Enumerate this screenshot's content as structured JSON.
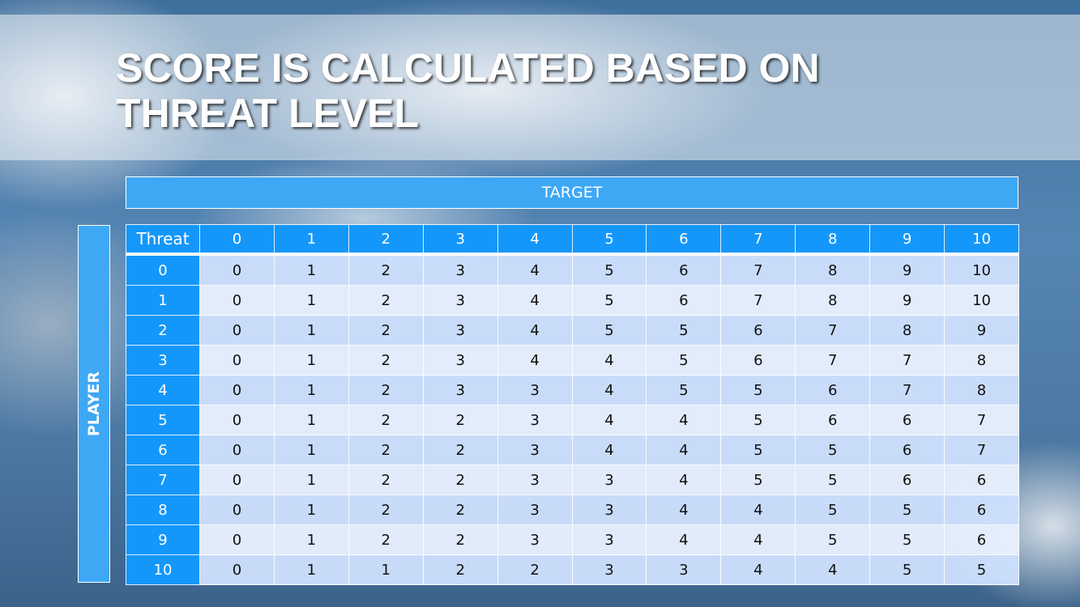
{
  "title": "SCORE IS CALCULATED BASED ON THREAT LEVEL",
  "target_label": "TARGET",
  "player_label": "PLAYER",
  "colors": {
    "header_blue": "#1497fa",
    "label_blue": "#3ea8f5",
    "row_dark": "#cde0fd",
    "row_light": "#e8f0fe"
  },
  "table": {
    "corner": "Threat",
    "columns": [
      "0",
      "1",
      "2",
      "3",
      "4",
      "5",
      "6",
      "7",
      "8",
      "9",
      "10"
    ],
    "rows": [
      {
        "label": "0",
        "values": [
          "0",
          "1",
          "2",
          "3",
          "4",
          "5",
          "6",
          "7",
          "8",
          "9",
          "10"
        ]
      },
      {
        "label": "1",
        "values": [
          "0",
          "1",
          "2",
          "3",
          "4",
          "5",
          "6",
          "7",
          "8",
          "9",
          "10"
        ]
      },
      {
        "label": "2",
        "values": [
          "0",
          "1",
          "2",
          "3",
          "4",
          "5",
          "5",
          "6",
          "7",
          "8",
          "9"
        ]
      },
      {
        "label": "3",
        "values": [
          "0",
          "1",
          "2",
          "3",
          "4",
          "4",
          "5",
          "6",
          "7",
          "7",
          "8"
        ]
      },
      {
        "label": "4",
        "values": [
          "0",
          "1",
          "2",
          "3",
          "3",
          "4",
          "5",
          "5",
          "6",
          "7",
          "8"
        ]
      },
      {
        "label": "5",
        "values": [
          "0",
          "1",
          "2",
          "2",
          "3",
          "4",
          "4",
          "5",
          "6",
          "6",
          "7"
        ]
      },
      {
        "label": "6",
        "values": [
          "0",
          "1",
          "2",
          "2",
          "3",
          "4",
          "4",
          "5",
          "5",
          "6",
          "7"
        ]
      },
      {
        "label": "7",
        "values": [
          "0",
          "1",
          "2",
          "2",
          "3",
          "3",
          "4",
          "5",
          "5",
          "6",
          "6"
        ]
      },
      {
        "label": "8",
        "values": [
          "0",
          "1",
          "2",
          "2",
          "3",
          "3",
          "4",
          "4",
          "5",
          "5",
          "6"
        ]
      },
      {
        "label": "9",
        "values": [
          "0",
          "1",
          "2",
          "2",
          "3",
          "3",
          "4",
          "4",
          "5",
          "5",
          "6"
        ]
      },
      {
        "label": "10",
        "values": [
          "0",
          "1",
          "1",
          "2",
          "2",
          "3",
          "3",
          "4",
          "4",
          "5",
          "5"
        ]
      }
    ]
  }
}
